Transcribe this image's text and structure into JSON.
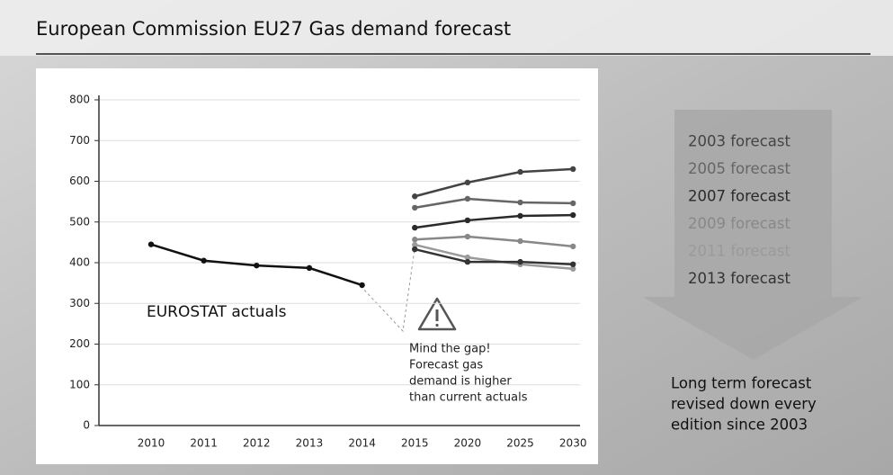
{
  "chart_data": {
    "type": "line",
    "title": "European Commission EU27 Gas demand forecast",
    "categories": [
      "2010",
      "2011",
      "2012",
      "2013",
      "2014",
      "2015",
      "2020",
      "2025",
      "2030"
    ],
    "series": [
      {
        "name": "EUROSTAT actuals",
        "color": "#111111",
        "values": [
          445,
          405,
          393,
          387,
          345,
          null,
          null,
          null,
          null
        ]
      },
      {
        "name": "2003 forecast",
        "color": "#444444",
        "values": [
          null,
          null,
          null,
          null,
          null,
          563,
          597,
          623,
          630
        ]
      },
      {
        "name": "2005 forecast",
        "color": "#666666",
        "values": [
          null,
          null,
          null,
          null,
          null,
          535,
          557,
          548,
          546
        ]
      },
      {
        "name": "2007 forecast",
        "color": "#2a2a2a",
        "values": [
          null,
          null,
          null,
          null,
          null,
          486,
          504,
          515,
          517
        ]
      },
      {
        "name": "2009 forecast",
        "color": "#888888",
        "values": [
          null,
          null,
          null,
          null,
          null,
          457,
          464,
          453,
          440
        ]
      },
      {
        "name": "2011 forecast",
        "color": "#9a9a9a",
        "values": [
          null,
          null,
          null,
          null,
          null,
          444,
          413,
          396,
          385
        ]
      },
      {
        "name": "2013 forecast",
        "color": "#333333",
        "values": [
          null,
          null,
          null,
          null,
          null,
          433,
          402,
          402,
          396
        ]
      }
    ],
    "ylim": [
      0,
      800
    ],
    "yticks": [
      0,
      100,
      200,
      300,
      400,
      500,
      600,
      700,
      800
    ],
    "grid": true,
    "gap_note": [
      "Mind the gap!",
      "Forecast gas",
      "demand is higher",
      "than current actuals"
    ],
    "side_note": [
      "Long term forecast",
      "revised down every",
      "edition since 2003"
    ]
  }
}
